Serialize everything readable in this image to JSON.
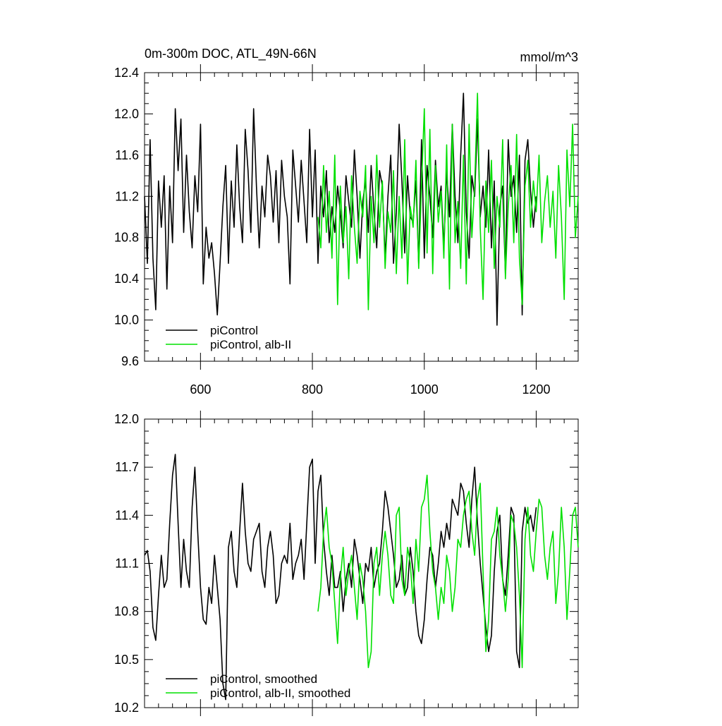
{
  "chart_data": [
    {
      "type": "line",
      "title": "0m-300m DOC, ATL_49N-66N",
      "units": "mmol/m^3",
      "xlim": [
        500,
        1275
      ],
      "ylim": [
        9.6,
        12.4
      ],
      "xticks": [
        600,
        800,
        1000,
        1200
      ],
      "xtick_labels": [
        "600",
        "800",
        "1000",
        "1200"
      ],
      "yticks": [
        9.6,
        10.0,
        10.4,
        10.8,
        11.2,
        11.6,
        12.0,
        12.4
      ],
      "ytick_labels": [
        "9.6",
        "10.0",
        "10.4",
        "10.8",
        "11.2",
        "11.6",
        "12.0",
        "12.4"
      ],
      "legend_position": "bottom-left",
      "series": [
        {
          "name": "piControl",
          "color": "#000000",
          "x": [
            500,
            505,
            510,
            515,
            520,
            525,
            530,
            535,
            540,
            545,
            550,
            555,
            560,
            565,
            570,
            575,
            580,
            585,
            590,
            595,
            600,
            605,
            610,
            615,
            620,
            625,
            630,
            635,
            640,
            645,
            650,
            655,
            660,
            665,
            670,
            675,
            680,
            685,
            690,
            695,
            700,
            705,
            710,
            715,
            720,
            725,
            730,
            735,
            740,
            745,
            750,
            755,
            760,
            765,
            770,
            775,
            780,
            785,
            790,
            795,
            800,
            805,
            810,
            815,
            820,
            825,
            830,
            835,
            840,
            845,
            850,
            855,
            860,
            865,
            870,
            875,
            880,
            885,
            890,
            895,
            900,
            905,
            910,
            915,
            920,
            925,
            930,
            935,
            940,
            945,
            950,
            955,
            960,
            965,
            970,
            975,
            980,
            985,
            990,
            995,
            1000,
            1005,
            1010,
            1015,
            1020,
            1025,
            1030,
            1035,
            1040,
            1045,
            1050,
            1055,
            1060,
            1065,
            1070,
            1075,
            1080,
            1085,
            1090,
            1095,
            1100,
            1105,
            1110,
            1115,
            1120,
            1125,
            1130,
            1135,
            1140,
            1145,
            1150,
            1155,
            1160,
            1165,
            1170,
            1175,
            1180,
            1185,
            1190,
            1195,
            1200
          ],
          "values": [
            11.2,
            10.55,
            11.75,
            10.6,
            10.1,
            11.35,
            10.9,
            11.4,
            10.3,
            11.3,
            10.75,
            12.05,
            11.45,
            11.95,
            10.85,
            11.6,
            11.05,
            10.7,
            11.4,
            11.05,
            11.9,
            10.35,
            10.9,
            10.6,
            10.75,
            10.45,
            10.05,
            10.55,
            11.1,
            11.5,
            10.55,
            11.35,
            10.9,
            11.7,
            11.1,
            10.75,
            11.85,
            11.45,
            10.85,
            12.05,
            11.3,
            10.7,
            11.3,
            11.0,
            11.6,
            11.4,
            10.95,
            11.45,
            10.75,
            11.55,
            11.2,
            11.0,
            10.35,
            11.65,
            11.3,
            10.95,
            11.55,
            11.15,
            10.75,
            11.85,
            11.0,
            11.65,
            10.55,
            11.3,
            11.0,
            11.45,
            10.75,
            11.1,
            10.85,
            11.3,
            11.05,
            10.7,
            11.4,
            11.15,
            10.9,
            11.65,
            11.2,
            10.6,
            11.15,
            11.35,
            10.85,
            11.5,
            11.05,
            10.7,
            11.45,
            11.3,
            10.6,
            11.2,
            11.6,
            10.55,
            11.05,
            11.9,
            11.35,
            10.65,
            11.4,
            11.0,
            10.95,
            11.35,
            10.55,
            11.75,
            10.6,
            11.5,
            11.2,
            10.8,
            11.55,
            11.1,
            11.3,
            10.7,
            11.45,
            11.0,
            11.9,
            11.2,
            10.75,
            11.6,
            12.2,
            11.05,
            10.6,
            11.4,
            11.2,
            11.95,
            11.0,
            11.3,
            10.9,
            11.65,
            10.7,
            11.35,
            9.95,
            11.1,
            11.3,
            10.45,
            11.75,
            11.2,
            11.4,
            10.85,
            11.6,
            10.05,
            11.55,
            11.75,
            11.25,
            10.9,
            11.2
          ],
          "smoothed_note": ""
        },
        {
          "name": "piControl, alb-II",
          "color": "#00e000",
          "x": [
            810,
            815,
            820,
            825,
            830,
            835,
            840,
            845,
            850,
            855,
            860,
            865,
            870,
            875,
            880,
            885,
            890,
            895,
            900,
            905,
            910,
            915,
            920,
            925,
            930,
            935,
            940,
            945,
            950,
            955,
            960,
            965,
            970,
            975,
            980,
            985,
            990,
            995,
            1000,
            1005,
            1010,
            1015,
            1020,
            1025,
            1030,
            1035,
            1040,
            1045,
            1050,
            1055,
            1060,
            1065,
            1070,
            1075,
            1080,
            1085,
            1090,
            1095,
            1100,
            1105,
            1110,
            1115,
            1120,
            1125,
            1130,
            1135,
            1140,
            1145,
            1150,
            1155,
            1160,
            1165,
            1170,
            1175,
            1180,
            1185,
            1190,
            1195,
            1200,
            1205,
            1210,
            1215,
            1220,
            1225,
            1230,
            1235,
            1240,
            1245,
            1250,
            1255,
            1260,
            1265,
            1270,
            1275
          ],
          "values": [
            11.0,
            10.7,
            11.5,
            10.85,
            11.25,
            10.6,
            11.6,
            10.15,
            11.3,
            10.75,
            11.1,
            10.4,
            11.4,
            10.9,
            10.55,
            11.25,
            11.0,
            11.5,
            10.1,
            11.2,
            10.75,
            11.6,
            10.9,
            11.35,
            10.5,
            11.05,
            10.85,
            11.45,
            10.45,
            11.2,
            10.6,
            11.75,
            10.35,
            11.1,
            10.9,
            11.55,
            10.5,
            11.3,
            12.05,
            10.65,
            11.85,
            10.45,
            11.5,
            10.95,
            11.25,
            10.6,
            11.7,
            10.3,
            11.9,
            10.75,
            11.15,
            10.5,
            11.6,
            10.35,
            11.9,
            10.8,
            11.3,
            12.2,
            10.9,
            10.2,
            11.35,
            10.85,
            11.55,
            10.5,
            11.2,
            10.9,
            11.75,
            10.4,
            11.1,
            11.5,
            10.75,
            11.8,
            10.6,
            10.15,
            11.3,
            11.55,
            10.9,
            11.35,
            11.05,
            11.6,
            10.75,
            11.15,
            11.4,
            10.9,
            11.25,
            10.6,
            11.5,
            11.0,
            10.2,
            11.65,
            11.1,
            11.9,
            10.8,
            11.2
          ]
        }
      ]
    },
    {
      "type": "line",
      "xlim": [
        500,
        1275
      ],
      "ylim": [
        10.2,
        12.0
      ],
      "xticks": [
        600,
        800,
        1000,
        1200
      ],
      "yticks": [
        10.2,
        10.5,
        10.8,
        11.1,
        11.4,
        11.7,
        12.0
      ],
      "ytick_labels": [
        "10.2",
        "10.5",
        "10.8",
        "11.1",
        "11.4",
        "11.7",
        "12.0"
      ],
      "legend_position": "bottom-left",
      "series": [
        {
          "name": "piControl, smoothed",
          "color": "#000000",
          "x": [
            500,
            505,
            510,
            515,
            520,
            525,
            530,
            535,
            540,
            545,
            550,
            555,
            560,
            565,
            570,
            575,
            580,
            585,
            590,
            595,
            600,
            605,
            610,
            615,
            620,
            625,
            630,
            635,
            640,
            645,
            650,
            655,
            660,
            665,
            670,
            675,
            680,
            685,
            690,
            695,
            700,
            705,
            710,
            715,
            720,
            725,
            730,
            735,
            740,
            745,
            750,
            755,
            760,
            765,
            770,
            775,
            780,
            785,
            790,
            795,
            800,
            805,
            810,
            815,
            820,
            825,
            830,
            835,
            840,
            845,
            850,
            855,
            860,
            865,
            870,
            875,
            880,
            885,
            890,
            895,
            900,
            905,
            910,
            915,
            920,
            925,
            930,
            935,
            940,
            945,
            950,
            955,
            960,
            965,
            970,
            975,
            980,
            985,
            990,
            995,
            1000,
            1005,
            1010,
            1015,
            1020,
            1025,
            1030,
            1035,
            1040,
            1045,
            1050,
            1055,
            1060,
            1065,
            1070,
            1075,
            1080,
            1085,
            1090,
            1095,
            1100,
            1105,
            1110,
            1115,
            1120,
            1125,
            1130,
            1135,
            1140,
            1145,
            1150,
            1155,
            1160,
            1165,
            1170,
            1175,
            1180,
            1185,
            1190,
            1195,
            1200
          ],
          "values": [
            11.15,
            11.18,
            11.05,
            10.7,
            10.62,
            10.9,
            11.15,
            10.95,
            11.0,
            11.35,
            11.65,
            11.78,
            11.35,
            10.95,
            11.25,
            11.05,
            10.95,
            11.45,
            11.7,
            11.3,
            10.95,
            10.75,
            10.72,
            10.95,
            10.85,
            11.15,
            10.95,
            10.75,
            10.35,
            10.25,
            11.2,
            11.3,
            11.05,
            10.95,
            11.3,
            11.6,
            11.3,
            11.1,
            11.05,
            11.25,
            11.3,
            11.35,
            11.05,
            10.95,
            11.2,
            11.3,
            11.15,
            10.85,
            10.9,
            11.1,
            11.15,
            11.1,
            11.35,
            11.0,
            11.1,
            11.15,
            11.25,
            11.0,
            11.35,
            11.7,
            11.75,
            11.1,
            11.55,
            11.65,
            11.25,
            11.05,
            10.9,
            11.15,
            10.95,
            10.95,
            11.05,
            10.8,
            11.0,
            11.1,
            10.95,
            11.25,
            11.15,
            11.0,
            10.85,
            11.1,
            11.05,
            11.2,
            10.95,
            11.05,
            11.1,
            11.3,
            11.55,
            11.45,
            11.3,
            11.15,
            10.95,
            11.0,
            11.15,
            10.9,
            10.95,
            11.2,
            11.05,
            10.8,
            10.65,
            10.6,
            10.75,
            11.0,
            11.2,
            11.15,
            10.95,
            11.1,
            11.3,
            11.2,
            11.35,
            11.25,
            11.5,
            11.45,
            11.4,
            11.6,
            11.55,
            11.35,
            11.2,
            11.5,
            11.7,
            11.35,
            11.1,
            10.9,
            10.7,
            10.55,
            10.65,
            11.05,
            11.3,
            11.4,
            11.0,
            10.9,
            11.15,
            11.45,
            11.4,
            10.55,
            10.45,
            11.3,
            11.45,
            11.35,
            11.4,
            11.3,
            11.45
          ]
        },
        {
          "name": "piControl, alb-II, smoothed",
          "color": "#00e000",
          "x": [
            810,
            815,
            820,
            825,
            830,
            835,
            840,
            845,
            850,
            855,
            860,
            865,
            870,
            875,
            880,
            885,
            890,
            895,
            900,
            905,
            910,
            915,
            920,
            925,
            930,
            935,
            940,
            945,
            950,
            955,
            960,
            965,
            970,
            975,
            980,
            985,
            990,
            995,
            1000,
            1005,
            1010,
            1015,
            1020,
            1025,
            1030,
            1035,
            1040,
            1045,
            1050,
            1055,
            1060,
            1065,
            1070,
            1075,
            1080,
            1085,
            1090,
            1095,
            1100,
            1105,
            1110,
            1115,
            1120,
            1125,
            1130,
            1135,
            1140,
            1145,
            1150,
            1155,
            1160,
            1165,
            1170,
            1175,
            1180,
            1185,
            1190,
            1195,
            1200,
            1205,
            1210,
            1215,
            1220,
            1225,
            1230,
            1235,
            1240,
            1245,
            1250,
            1255,
            1260,
            1265,
            1270,
            1275
          ],
          "values": [
            10.8,
            10.95,
            11.3,
            11.45,
            11.2,
            11.1,
            10.85,
            10.6,
            11.0,
            11.2,
            10.9,
            11.05,
            11.15,
            10.95,
            10.75,
            11.1,
            11.0,
            10.8,
            10.45,
            10.55,
            11.1,
            11.2,
            10.9,
            11.15,
            11.3,
            11.15,
            10.9,
            10.85,
            11.4,
            11.45,
            11.0,
            10.9,
            11.2,
            11.1,
            10.85,
            11.25,
            11.05,
            11.45,
            11.5,
            11.65,
            11.3,
            11.05,
            10.95,
            10.75,
            10.95,
            10.85,
            11.15,
            11.05,
            10.8,
            10.95,
            11.25,
            11.2,
            11.4,
            11.5,
            11.55,
            11.3,
            11.15,
            11.5,
            11.6,
            11.05,
            10.55,
            10.75,
            11.25,
            11.3,
            11.45,
            11.15,
            11.0,
            10.8,
            11.0,
            11.4,
            11.35,
            11.2,
            10.9,
            10.45,
            11.25,
            11.45,
            11.15,
            11.05,
            11.3,
            11.5,
            11.45,
            11.15,
            11.0,
            11.2,
            11.3,
            10.85,
            11.05,
            11.45,
            11.2,
            10.75,
            11.05,
            11.4,
            11.45,
            11.2
          ]
        }
      ]
    }
  ]
}
